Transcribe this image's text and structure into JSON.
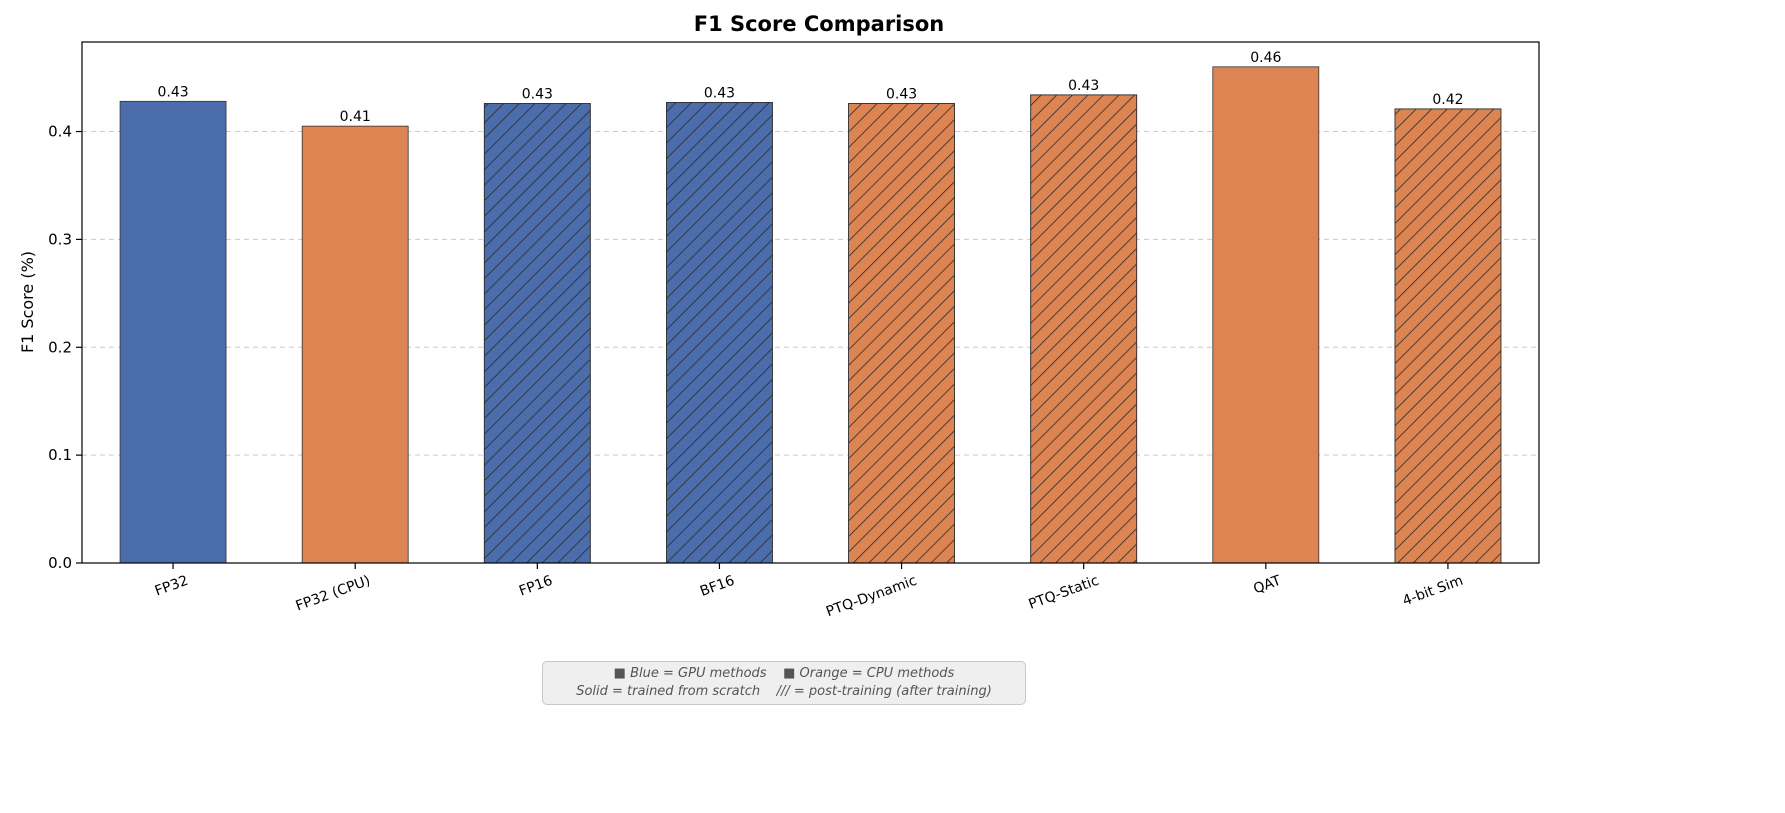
{
  "chart_data": {
    "type": "bar",
    "title": "F1 Score Comparison",
    "xlabel": "",
    "ylabel": "F1 Score (%)",
    "ylim": [
      0,
      0.483
    ],
    "yticks": [
      "0.0",
      "0.1",
      "0.2",
      "0.3",
      "0.4"
    ],
    "grid": "y-dashed",
    "categories": [
      "FP32",
      "FP32 (CPU)",
      "FP16",
      "BF16",
      "PTQ-Dynamic",
      "PTQ-Static",
      "QAT",
      "4-bit Sim"
    ],
    "values": [
      0.428,
      0.405,
      0.426,
      0.427,
      0.426,
      0.434,
      0.46,
      0.421
    ],
    "value_labels": [
      "0.43",
      "0.41",
      "0.43",
      "0.43",
      "0.43",
      "0.43",
      "0.46",
      "0.42"
    ],
    "bar_colors": [
      "#4c6dab",
      "#dd8453",
      "#4c6dab",
      "#4c6dab",
      "#dd8453",
      "#dd8453",
      "#dd8453",
      "#dd8453"
    ],
    "hatched": [
      false,
      false,
      true,
      true,
      true,
      true,
      false,
      true
    ]
  },
  "legend_note": {
    "line1_parts": [
      "■ ",
      "Blue",
      " = ",
      "GPU methods",
      "    ■ ",
      "Orange",
      " = ",
      "CPU methods"
    ],
    "line2_parts": [
      "Solid",
      " = ",
      "trained from scratch",
      "    /// = ",
      "post-training (after training)"
    ]
  },
  "colors": {
    "gpu": "#4c6dab",
    "cpu": "#dd8453",
    "grid": "#cccccc"
  }
}
